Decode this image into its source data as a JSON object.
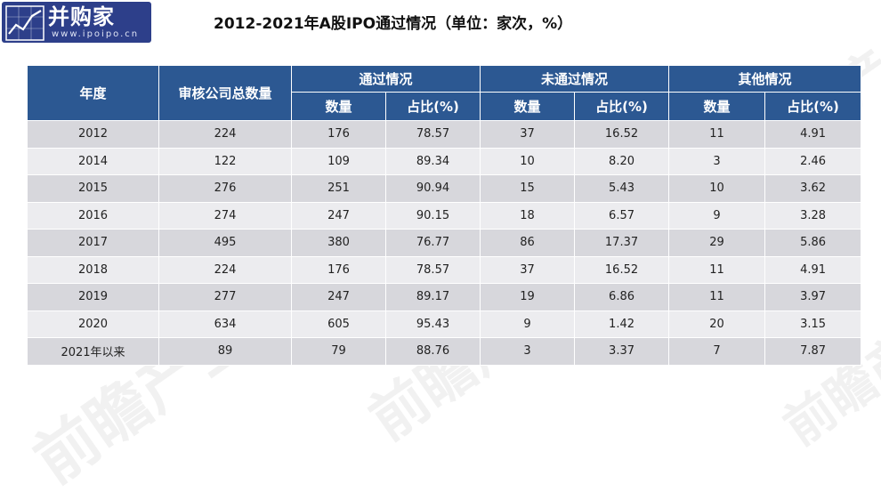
{
  "logo": {
    "name": "并购家",
    "url": "www.ipoipo.cn"
  },
  "title": "2012-2021年A股IPO通过情况（单位：家次，%）",
  "watermark": "前瞻产业研究院",
  "table": {
    "header_row1": {
      "year": "年度",
      "total": "审核公司总数量",
      "passed": "通过情况",
      "failed": "未通过情况",
      "other": "其他情况"
    },
    "header_row2": {
      "count": "数量",
      "ratio": "占比(%)"
    },
    "rows": [
      [
        "2012",
        "224",
        "176",
        "78.57",
        "37",
        "16.52",
        "11",
        "4.91"
      ],
      [
        "2014",
        "122",
        "109",
        "89.34",
        "10",
        "8.20",
        "3",
        "2.46"
      ],
      [
        "2015",
        "276",
        "251",
        "90.94",
        "15",
        "5.43",
        "10",
        "3.62"
      ],
      [
        "2016",
        "274",
        "247",
        "90.15",
        "18",
        "6.57",
        "9",
        "3.28"
      ],
      [
        "2017",
        "495",
        "380",
        "76.77",
        "86",
        "17.37",
        "29",
        "5.86"
      ],
      [
        "2018",
        "224",
        "176",
        "78.57",
        "37",
        "16.52",
        "11",
        "4.91"
      ],
      [
        "2019",
        "277",
        "247",
        "89.17",
        "19",
        "6.86",
        "11",
        "3.97"
      ],
      [
        "2020",
        "634",
        "605",
        "95.43",
        "9",
        "1.42",
        "20",
        "3.15"
      ],
      [
        "2021年以来",
        "89",
        "79",
        "88.76",
        "3",
        "3.37",
        "7",
        "7.87"
      ]
    ]
  },
  "chart_data": {
    "type": "table",
    "title": "2012-2021年A股IPO通过情况（单位：家次，%）",
    "columns": [
      "年度",
      "审核公司总数量",
      "通过情况-数量",
      "通过情况-占比(%)",
      "未通过情况-数量",
      "未通过情况-占比(%)",
      "其他情况-数量",
      "其他情况-占比(%)"
    ],
    "rows": [
      [
        "2012",
        224,
        176,
        78.57,
        37,
        16.52,
        11,
        4.91
      ],
      [
        "2014",
        122,
        109,
        89.34,
        10,
        8.2,
        3,
        2.46
      ],
      [
        "2015",
        276,
        251,
        90.94,
        15,
        5.43,
        10,
        3.62
      ],
      [
        "2016",
        274,
        247,
        90.15,
        18,
        6.57,
        9,
        3.28
      ],
      [
        "2017",
        495,
        380,
        76.77,
        86,
        17.37,
        29,
        5.86
      ],
      [
        "2018",
        224,
        176,
        78.57,
        37,
        16.52,
        11,
        4.91
      ],
      [
        "2019",
        277,
        247,
        89.17,
        19,
        6.86,
        11,
        3.97
      ],
      [
        "2020",
        634,
        605,
        95.43,
        9,
        1.42,
        20,
        3.15
      ],
      [
        "2021年以来",
        89,
        79,
        88.76,
        3,
        3.37,
        7,
        7.87
      ]
    ]
  },
  "colors": {
    "header_bg": "#2c5892",
    "row_odd": "#d7d7dc",
    "row_even": "#ececef",
    "logo_bg": "#2d3f8a"
  }
}
